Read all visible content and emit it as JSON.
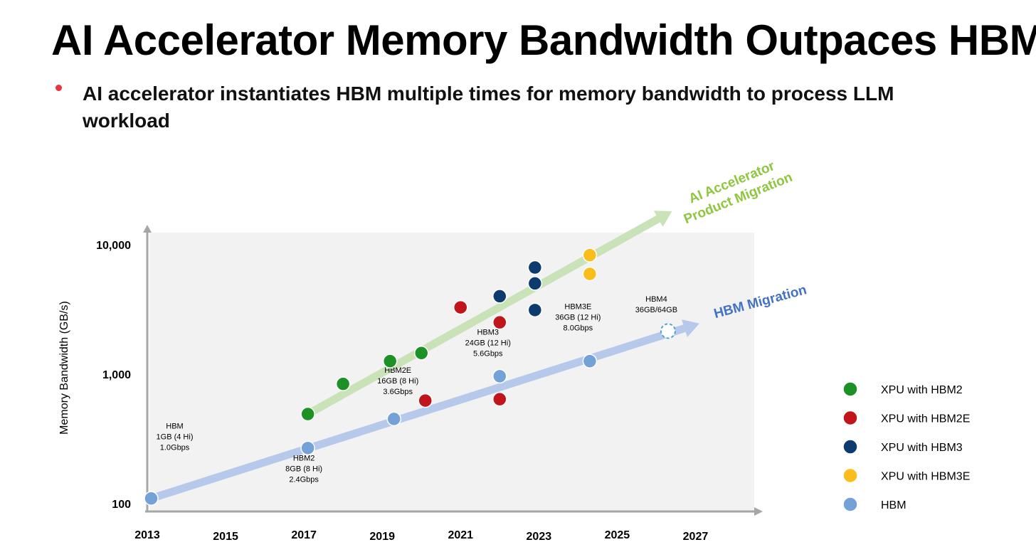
{
  "slide": {
    "title": "AI Accelerator Memory Bandwidth Outpaces HBM",
    "bullet": "AI accelerator instantiates HBM multiple times for memory bandwidth to process LLM workload"
  },
  "chart_data": {
    "type": "scatter",
    "title": "AI Accelerator Memory Bandwidth Outpaces HBM",
    "xlabel": "",
    "ylabel": "Memory Bandwidth (GB/s)",
    "xlim": [
      2013,
      2028.5
    ],
    "ylim": [
      100,
      12500
    ],
    "yscale": "log",
    "x_ticks": [
      2013,
      2015,
      2017,
      2019,
      2021,
      2023,
      2025,
      2027
    ],
    "y_ticks": [
      {
        "value": 100,
        "label": "100"
      },
      {
        "value": 1000,
        "label": "1,000"
      },
      {
        "value": 10000,
        "label": "10,000"
      }
    ],
    "series": [
      {
        "name": "XPU with HBM2",
        "color": "#1e9126",
        "points": [
          {
            "x": 2017.1,
            "y": 480
          },
          {
            "x": 2018.0,
            "y": 820
          },
          {
            "x": 2019.2,
            "y": 1230
          },
          {
            "x": 2020.0,
            "y": 1420
          }
        ]
      },
      {
        "name": "XPU with HBM2E",
        "color": "#c0151b",
        "points": [
          {
            "x": 2020.1,
            "y": 610
          },
          {
            "x": 2021.0,
            "y": 3200
          },
          {
            "x": 2022.0,
            "y": 2450
          },
          {
            "x": 2022.0,
            "y": 625
          }
        ]
      },
      {
        "name": "XPU with HBM3",
        "color": "#0e3b6e",
        "points": [
          {
            "x": 2022.0,
            "y": 3900
          },
          {
            "x": 2022.9,
            "y": 6500
          },
          {
            "x": 2022.9,
            "y": 4900
          },
          {
            "x": 2022.9,
            "y": 3050
          }
        ]
      },
      {
        "name": "XPU with HBM3E",
        "color": "#fbbd1c",
        "points": [
          {
            "x": 2024.3,
            "y": 8100
          },
          {
            "x": 2024.3,
            "y": 5800
          }
        ]
      },
      {
        "name": "HBM",
        "color": "#73a1d8",
        "points": [
          {
            "x": 2013.1,
            "y": 107
          },
          {
            "x": 2017.1,
            "y": 262
          },
          {
            "x": 2019.3,
            "y": 440
          },
          {
            "x": 2022.0,
            "y": 940
          },
          {
            "x": 2024.3,
            "y": 1230
          }
        ]
      }
    ],
    "hbm4_point": {
      "x": 2026.3,
      "y": 2100,
      "style": "dashed"
    },
    "trend_arrows": [
      {
        "name": "AI Accelerator Product Migration",
        "from": {
          "x": 2017.1,
          "y": 480
        },
        "to": {
          "x": 2026.4,
          "y": 17700
        },
        "color": "#c9e2b7"
      },
      {
        "name": "HBM Migration",
        "from": {
          "x": 2013.1,
          "y": 107
        },
        "to": {
          "x": 2027.1,
          "y": 2400
        },
        "color": "#b6c9ea"
      }
    ],
    "annotations": [
      {
        "id": "hbm",
        "x": 2013.7,
        "y": 370,
        "lines": [
          "HBM",
          "1GB (4 Hi)",
          "1.0Gbps"
        ]
      },
      {
        "id": "hbm2",
        "x": 2017.0,
        "y": 210,
        "lines": [
          "HBM2",
          "8GB (8 Hi)",
          "2.4Gbps"
        ]
      },
      {
        "id": "hbm2e",
        "x": 2019.4,
        "y": 1000,
        "lines": [
          "HBM2E",
          "16GB (8 Hi)",
          "3.6Gbps"
        ]
      },
      {
        "id": "hbm3",
        "x": 2021.7,
        "y": 1970,
        "lines": [
          "HBM3",
          "24GB (12 Hi)",
          "5.6Gbps"
        ]
      },
      {
        "id": "hbm3e",
        "x": 2024.0,
        "y": 3100,
        "lines": [
          "HBM3E",
          "36GB (12 Hi)",
          "8.0Gbps"
        ]
      },
      {
        "id": "hbm4",
        "x": 2026.0,
        "y": 3550,
        "lines": [
          "HBM4",
          "36GB/64GB"
        ]
      }
    ],
    "arrow_labels": {
      "accelerator": [
        "AI Accelerator",
        "Product Migration"
      ],
      "hbm": "HBM Migration"
    },
    "legend": {
      "position": "right",
      "entries": [
        "XPU with HBM2",
        "XPU with HBM2E",
        "XPU with HBM3",
        "XPU with HBM3E",
        "HBM"
      ]
    },
    "grid": false
  }
}
